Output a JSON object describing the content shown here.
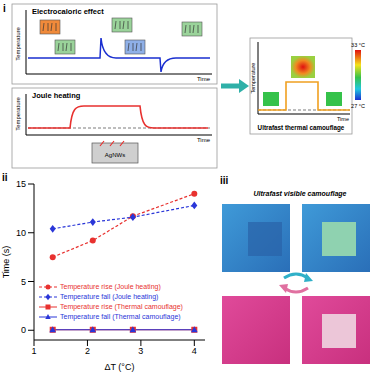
{
  "panel_labels": [
    "i",
    "ii",
    "iii"
  ],
  "diagram": {
    "electrocaloric": {
      "title": "Electrocaloric effect",
      "x_label": "Time",
      "y_label": "Temperature"
    },
    "joule_heating": {
      "title": "Joule heating",
      "x_label": "Time",
      "y_label": "Temperature",
      "device_label": "AgNWs"
    },
    "thermal_camouflage": {
      "title": "Ultrafast thermal camouflage",
      "x_label": "Time",
      "y_label": "Temperature",
      "colorbar_range": [
        27,
        33
      ],
      "colorbar_ticks": [
        {
          "value": 33,
          "label": "33 °C"
        },
        {
          "value": 27,
          "label": "27 °C"
        }
      ]
    }
  },
  "chart_data": {
    "type": "line",
    "xlabel": "ΔT (°C)",
    "ylabel": "Time (s)",
    "xlim": [
      1,
      4.2
    ],
    "ylim": [
      -1,
      15
    ],
    "xticks": [
      1,
      2,
      3,
      4
    ],
    "yticks": [
      0,
      5,
      10,
      15
    ],
    "legend": "lower left",
    "series": [
      {
        "name": "Temperature rise (Joule heating)",
        "color": "#e8312f",
        "marker": "circle",
        "line_style": "dashed",
        "x": [
          1.35,
          2.1,
          2.85,
          4.0
        ],
        "values": [
          7.5,
          9.2,
          11.7,
          14.0
        ]
      },
      {
        "name": "Temperature fall (Joule heating)",
        "color": "#2a36d8",
        "marker": "diamond",
        "line_style": "dashed",
        "x": [
          1.35,
          2.1,
          2.85,
          4.0
        ],
        "values": [
          10.4,
          11.1,
          11.6,
          12.8
        ]
      },
      {
        "name": "Temperature rise (Thermal camouflage)",
        "color": "#e8312f",
        "marker": "square",
        "line_style": "solid",
        "x": [
          1.35,
          2.1,
          2.85,
          4.0
        ],
        "values": [
          0.05,
          0.05,
          0.05,
          0.05
        ]
      },
      {
        "name": "Temperature fall (Thermal camouflage)",
        "color": "#2a36d8",
        "marker": "triangle",
        "line_style": "solid",
        "x": [
          1.35,
          2.1,
          2.85,
          4.0
        ],
        "values": [
          0.05,
          0.05,
          0.05,
          0.05
        ]
      }
    ]
  },
  "photos": {
    "title": "Ultrafast visible camouflage"
  }
}
